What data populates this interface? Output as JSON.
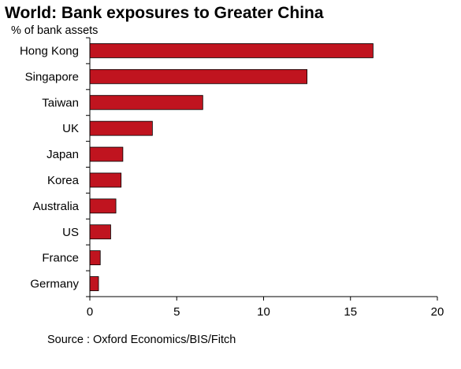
{
  "chart_data": {
    "type": "bar",
    "orientation": "horizontal",
    "title": "World: Bank exposures to Greater China",
    "subtitle": "% of bank assets",
    "categories": [
      "Hong Kong",
      "Singapore",
      "Taiwan",
      "UK",
      "Japan",
      "Korea",
      "Australia",
      "US",
      "France",
      "Germany"
    ],
    "values": [
      16.3,
      12.5,
      6.5,
      3.6,
      1.9,
      1.8,
      1.5,
      1.2,
      0.6,
      0.5
    ],
    "xlim": [
      0,
      20
    ],
    "xticks": [
      "0",
      "5",
      "10",
      "15",
      "20"
    ],
    "xlabel": "",
    "ylabel": "",
    "grid": false,
    "bar_color": "#c0141f",
    "source": "Source : Oxford Economics/BIS/Fitch"
  }
}
